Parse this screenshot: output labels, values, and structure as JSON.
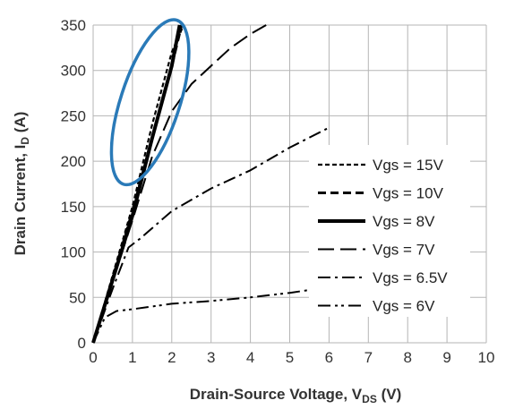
{
  "chart_data": {
    "type": "line",
    "xlabel": "Drain-Source Voltage, V",
    "xlabel_sub": "DS",
    "xlabel_unit": "(V)",
    "ylabel": "Drain Current, I",
    "ylabel_sub": "D",
    "ylabel_unit": "(A)",
    "xlim": [
      0,
      10
    ],
    "ylim": [
      0,
      350
    ],
    "xticks": [
      "0",
      "1",
      "2",
      "3",
      "4",
      "5",
      "6",
      "7",
      "8",
      "9",
      "10"
    ],
    "yticks": [
      "0",
      "50",
      "100",
      "150",
      "200",
      "250",
      "300",
      "350"
    ],
    "grid": true,
    "legend_position": "center-right",
    "series": [
      {
        "name": "Vgs = 15V",
        "dash": "short-dash",
        "color": "#000000",
        "points": [
          [
            0,
            0
          ],
          [
            0.5,
            75
          ],
          [
            1.0,
            150
          ],
          [
            1.5,
            240
          ],
          [
            2.0,
            320
          ],
          [
            2.3,
            350
          ]
        ]
      },
      {
        "name": "Vgs = 10V",
        "dash": "dash",
        "color": "#000000",
        "points": [
          [
            0,
            0
          ],
          [
            0.5,
            72
          ],
          [
            1.0,
            145
          ],
          [
            1.5,
            225
          ],
          [
            2.0,
            305
          ],
          [
            2.25,
            350
          ]
        ]
      },
      {
        "name": "Vgs = 8V",
        "dash": "solid",
        "color": "#000000",
        "points": [
          [
            0,
            0
          ],
          [
            0.5,
            70
          ],
          [
            1.0,
            140
          ],
          [
            1.5,
            225
          ],
          [
            2.0,
            305
          ],
          [
            2.2,
            350
          ]
        ]
      },
      {
        "name": "Vgs = 7V",
        "dash": "long-dash",
        "color": "#000000",
        "points": [
          [
            0,
            0
          ],
          [
            0.5,
            68
          ],
          [
            1.0,
            135
          ],
          [
            1.5,
            205
          ],
          [
            2.0,
            255
          ],
          [
            2.5,
            285
          ],
          [
            3.0,
            305
          ],
          [
            3.5,
            325
          ],
          [
            4.0,
            340
          ],
          [
            4.4,
            352
          ]
        ]
      },
      {
        "name": "Vgs = 6.5V",
        "dash": "dash-dot",
        "color": "#000000",
        "points": [
          [
            0,
            0
          ],
          [
            0.5,
            60
          ],
          [
            0.9,
            105
          ],
          [
            1.2,
            115
          ],
          [
            2.0,
            145
          ],
          [
            3.0,
            170
          ],
          [
            4.0,
            190
          ],
          [
            5.0,
            215
          ],
          [
            6.0,
            237
          ]
        ]
      },
      {
        "name": "Vgs = 6V",
        "dash": "dash-dot-dot",
        "color": "#000000",
        "points": [
          [
            0,
            0
          ],
          [
            0.3,
            28
          ],
          [
            0.6,
            35
          ],
          [
            1.0,
            37
          ],
          [
            2.0,
            43
          ],
          [
            3.0,
            46
          ],
          [
            4.0,
            50
          ],
          [
            5.0,
            55
          ],
          [
            5.8,
            60
          ]
        ]
      }
    ],
    "highlight_ellipse": {
      "color": "#2a7ab8",
      "center": [
        1.45,
        265
      ],
      "rx_units": 0.75,
      "ry_units": 95,
      "tilt_deg": 18
    }
  }
}
